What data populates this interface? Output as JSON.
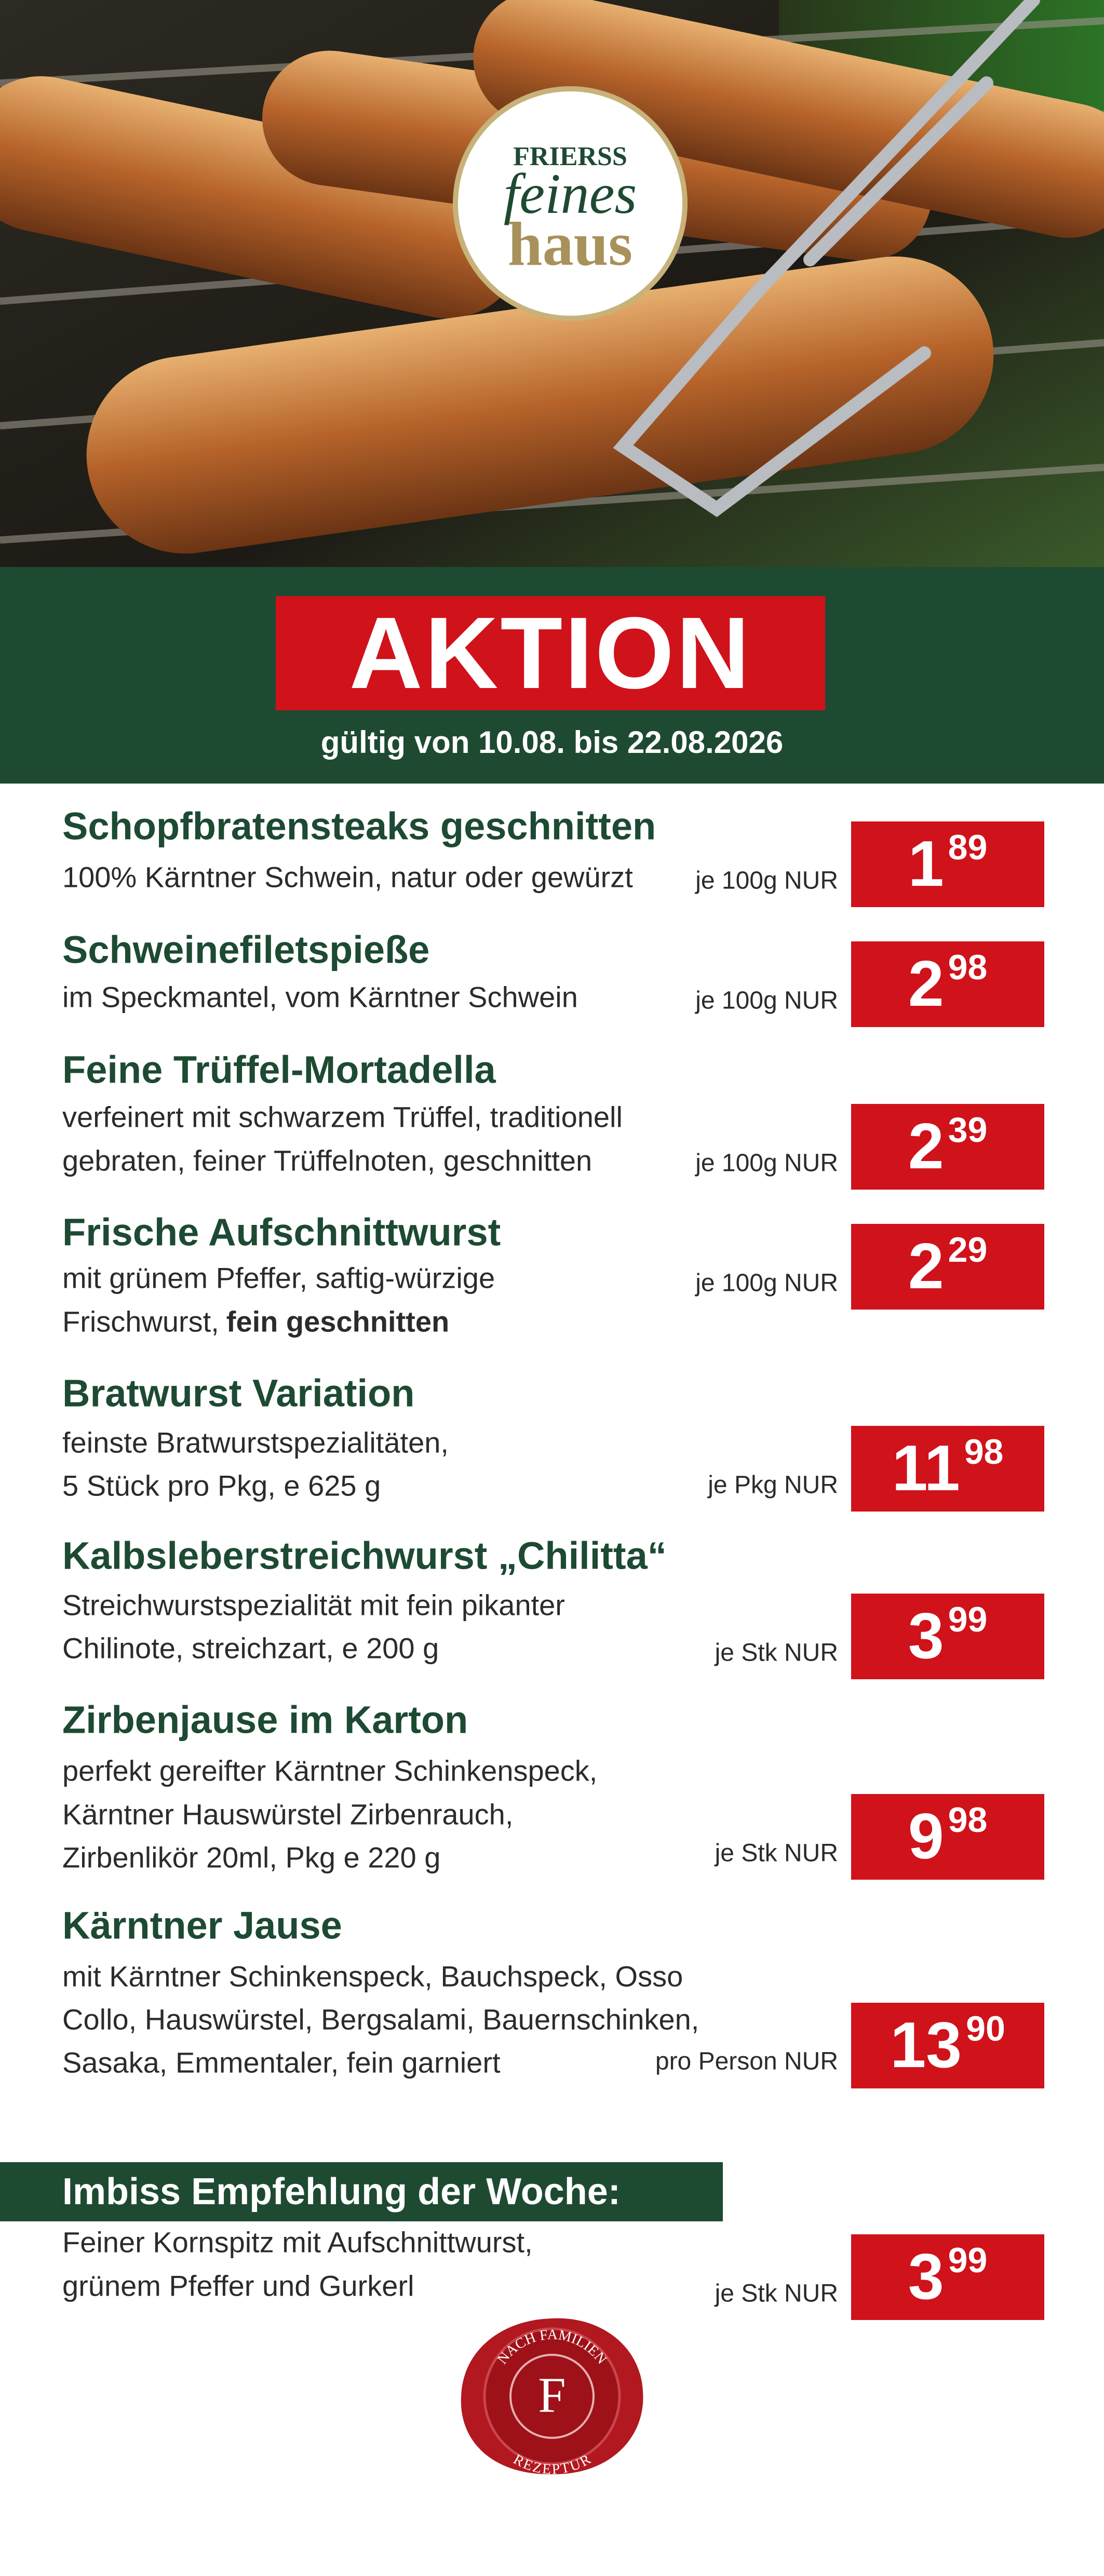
{
  "header": {
    "logo_top": "FRIERSS",
    "logo_middle": "feines",
    "logo_bottom": "haus",
    "badge": "AKTION",
    "validity": "gültig von 10.08. bis 22.08.2026"
  },
  "items": [
    {
      "name": "Schopfbratensteaks geschnitten",
      "description": [
        "100% Kärntner Schwein, natur oder gewürzt"
      ],
      "unit": "je 100g NUR",
      "price_main": "1",
      "price_cents": "89"
    },
    {
      "name": "Schweinefiletspieße",
      "description": [
        "im Speckmantel, vom Kärntner Schwein"
      ],
      "unit": "je 100g NUR",
      "price_main": "2",
      "price_cents": "98"
    },
    {
      "name": "Feine Trüffel-Mortadella",
      "description": [
        "verfeinert mit schwarzem Trüffel, traditionell",
        "gebraten, feiner Trüffelnoten, geschnitten"
      ],
      "unit": "je 100g NUR",
      "price_main": "2",
      "price_cents": "39"
    },
    {
      "name": "Frische Aufschnittwurst",
      "description": [
        "mit grünem Pfeffer, saftig-würzige",
        "Frischwurst,"
      ],
      "description_bold": "fein geschnitten",
      "unit": "je 100g NUR",
      "price_main": "2",
      "price_cents": "29"
    },
    {
      "name": "Bratwurst Variation",
      "description": [
        "feinste Bratwurstspezialitäten,",
        "5 Stück pro Pkg, e 625 g"
      ],
      "unit": "je Pkg NUR",
      "price_main": "11",
      "price_cents": "98"
    },
    {
      "name": "Kalbsleberstreichwurst „Chilitta“",
      "description": [
        "Streichwurstspezialität mit fein pikanter",
        "Chilinote, streichzart, e 200 g"
      ],
      "unit": "je Stk NUR",
      "price_main": "3",
      "price_cents": "99"
    },
    {
      "name": "Zirbenjause im Karton",
      "description": [
        "perfekt gereifter Kärntner Schinkenspeck,",
        "Kärntner Hauswürstel Zirbenrauch,",
        "Zirbenlikör 20ml, Pkg e 220 g"
      ],
      "unit": "je Stk NUR",
      "price_main": "9",
      "price_cents": "98"
    },
    {
      "name": "Kärntner Jause",
      "description": [
        "mit Kärntner Schinkenspeck, Bauchspeck, Osso",
        "Collo, Hauswürstel, Bergsalami, Bauernschinken,",
        "Sasaka, Emmentaler, fein garniert"
      ],
      "unit": "pro Person NUR",
      "price_main": "13",
      "price_cents": "90"
    }
  ],
  "snack": {
    "heading": "Imbiss Empfehlung der Woche:",
    "description": [
      "Feiner Kornspitz mit Aufschnittwurst,",
      "grünem Pfeffer und Gurkerl"
    ],
    "unit": "je Stk NUR",
    "price_main": "3",
    "price_cents": "99"
  },
  "seal": {
    "top": "NACH FAMILIEN",
    "letter": "F",
    "bottom": "REZEPTUR"
  }
}
